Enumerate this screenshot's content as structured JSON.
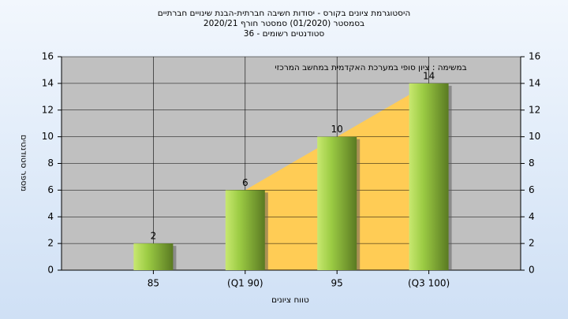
{
  "chart_data": {
    "type": "bar",
    "title": [
      "היסטוגרמת ציונים בקורס - יסודות חשיבה חברתית-הבנת שינויים חברתיים",
      "בסמסטר  (01/2020)  סמסטר חורף  2020/21",
      "סטודנטים רשומים - 36"
    ],
    "annotation": "במשימה : ציון סופי במערכת האקדמית במחשב המרכזי",
    "x_label": "טווח ציונים",
    "y_label": "מספר סטודנטים",
    "categories": [
      "85",
      "(Q1 90)",
      "95",
      "(Q3 100)"
    ],
    "values": [
      2,
      6,
      10,
      14
    ],
    "ylim": [
      0,
      16
    ],
    "yticks": [
      0,
      2,
      4,
      6,
      8,
      10,
      12,
      14,
      16
    ],
    "y2lim": [
      0,
      16
    ],
    "y2ticks": [
      0,
      2,
      4,
      6,
      8,
      10,
      12,
      14,
      16
    ],
    "grid": true,
    "area_colors": [
      "#c0c0c0",
      "#ffcc55"
    ]
  }
}
